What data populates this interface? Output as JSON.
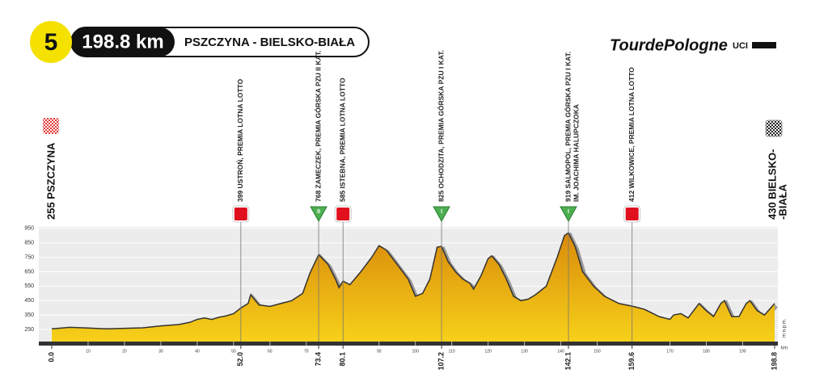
{
  "header": {
    "stage": "5",
    "distance": "198.8 km",
    "route": "PSZCZYNA - BIELSKO-BIAŁA",
    "logo": "TourdePologne",
    "uci": "UCI"
  },
  "chart_data": {
    "type": "area",
    "start_label": "255 PSZCZYNA",
    "finish_label": [
      "430 BIELSKO-",
      "-BIAŁA"
    ],
    "y_unit": "m n.p.m.",
    "x_unit": "km",
    "x": [
      0,
      5,
      10,
      15,
      20,
      25,
      30,
      35,
      38,
      40,
      42,
      44,
      46,
      48,
      50,
      52,
      54,
      54.7,
      57,
      60,
      63,
      66,
      69,
      71,
      73.4,
      76,
      78,
      79,
      80.1,
      82,
      85,
      88,
      90,
      92,
      95,
      98,
      100,
      102,
      104,
      106,
      107.2,
      109,
      111,
      113,
      115,
      116,
      118,
      120,
      121,
      123,
      125,
      127,
      129,
      131,
      133,
      136,
      139,
      141,
      142.1,
      144,
      146,
      149,
      152,
      156,
      159.6,
      163,
      167,
      170,
      171,
      173,
      175,
      178,
      180,
      182,
      184,
      185,
      187,
      189,
      191,
      192,
      194,
      196,
      198.8
    ],
    "values": [
      255,
      265,
      260,
      255,
      258,
      262,
      275,
      285,
      300,
      320,
      330,
      320,
      335,
      345,
      360,
      399,
      430,
      490,
      420,
      410,
      430,
      450,
      500,
      640,
      768,
      700,
      600,
      540,
      585,
      560,
      650,
      750,
      830,
      800,
      700,
      600,
      480,
      500,
      600,
      820,
      825,
      720,
      650,
      600,
      570,
      530,
      620,
      740,
      760,
      700,
      600,
      480,
      450,
      460,
      490,
      550,
      750,
      900,
      919,
      820,
      650,
      550,
      480,
      430,
      412,
      390,
      340,
      320,
      350,
      360,
      330,
      430,
      380,
      340,
      430,
      450,
      340,
      340,
      430,
      450,
      380,
      350,
      430
    ],
    "color": "#f2b705",
    "xlim": [
      0,
      198.8
    ],
    "ylim": [
      150,
      960
    ],
    "yticks": [
      250,
      350,
      450,
      550,
      650,
      750,
      850,
      950
    ],
    "xticks": [
      10,
      20,
      30,
      40,
      50,
      60,
      70,
      90,
      100,
      110,
      120,
      130,
      140,
      150,
      170,
      180,
      190
    ],
    "km_markers": [
      {
        "value": 0,
        "label": "0.0"
      },
      {
        "value": 52,
        "label": "52.0"
      },
      73.4,
      80.1,
      107.2,
      142.1,
      159.6,
      198.8
    ],
    "grid": true,
    "annotations": [
      {
        "x": 52,
        "kind": "sprint",
        "lines": [
          "399 USTROŃ, PREMIA LOTNA LOTTO"
        ]
      },
      {
        "x": 73.4,
        "kind": "mountain",
        "badge": "II",
        "lines": [
          "768 ZAMECZEK, PREMIA GÓRSKA PZU II KAT."
        ]
      },
      {
        "x": 80.1,
        "kind": "sprint",
        "lines": [
          "585 ISTEBNA, PREMIA LOTNA LOTTO"
        ]
      },
      {
        "x": 107.2,
        "kind": "mountain",
        "badge": "I",
        "lines": [
          "825 OCHODZITA, PREMIA GÓRSKA PZU I KAT."
        ]
      },
      {
        "x": 142.1,
        "kind": "mountain",
        "badge": "I",
        "lines": [
          "919 SALMOPOL, PREMIA GÓRSKA PZU I KAT.",
          "IM. JOACHIMA HALUPCZOKA"
        ]
      },
      {
        "x": 159.6,
        "kind": "sprint",
        "lines": [
          "412 WILKOWICE, PREMIA LOTNA LOTTO"
        ]
      }
    ]
  }
}
